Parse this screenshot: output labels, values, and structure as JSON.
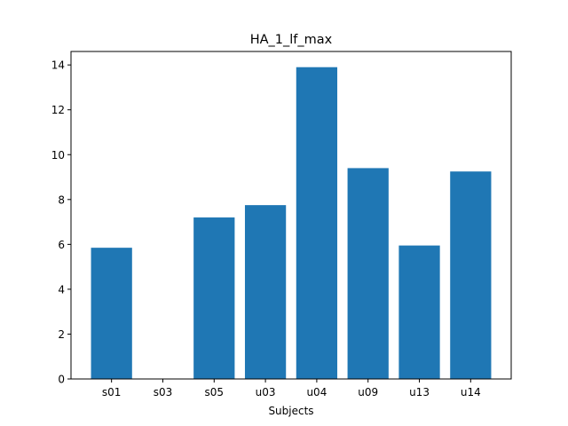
{
  "chart_data": {
    "type": "bar",
    "title": "HA_1_lf_max",
    "xlabel": "Subjects",
    "ylabel": "",
    "categories": [
      "s01",
      "s03",
      "s05",
      "u03",
      "u04",
      "u09",
      "u13",
      "u14"
    ],
    "values": [
      5.85,
      0,
      7.2,
      7.75,
      13.9,
      9.4,
      5.95,
      9.25
    ],
    "ylim": [
      0,
      14.6
    ],
    "yticks": [
      0,
      2,
      4,
      6,
      8,
      10,
      12,
      14
    ],
    "bar_color": "#1f77b4",
    "grid": false,
    "legend": false
  }
}
